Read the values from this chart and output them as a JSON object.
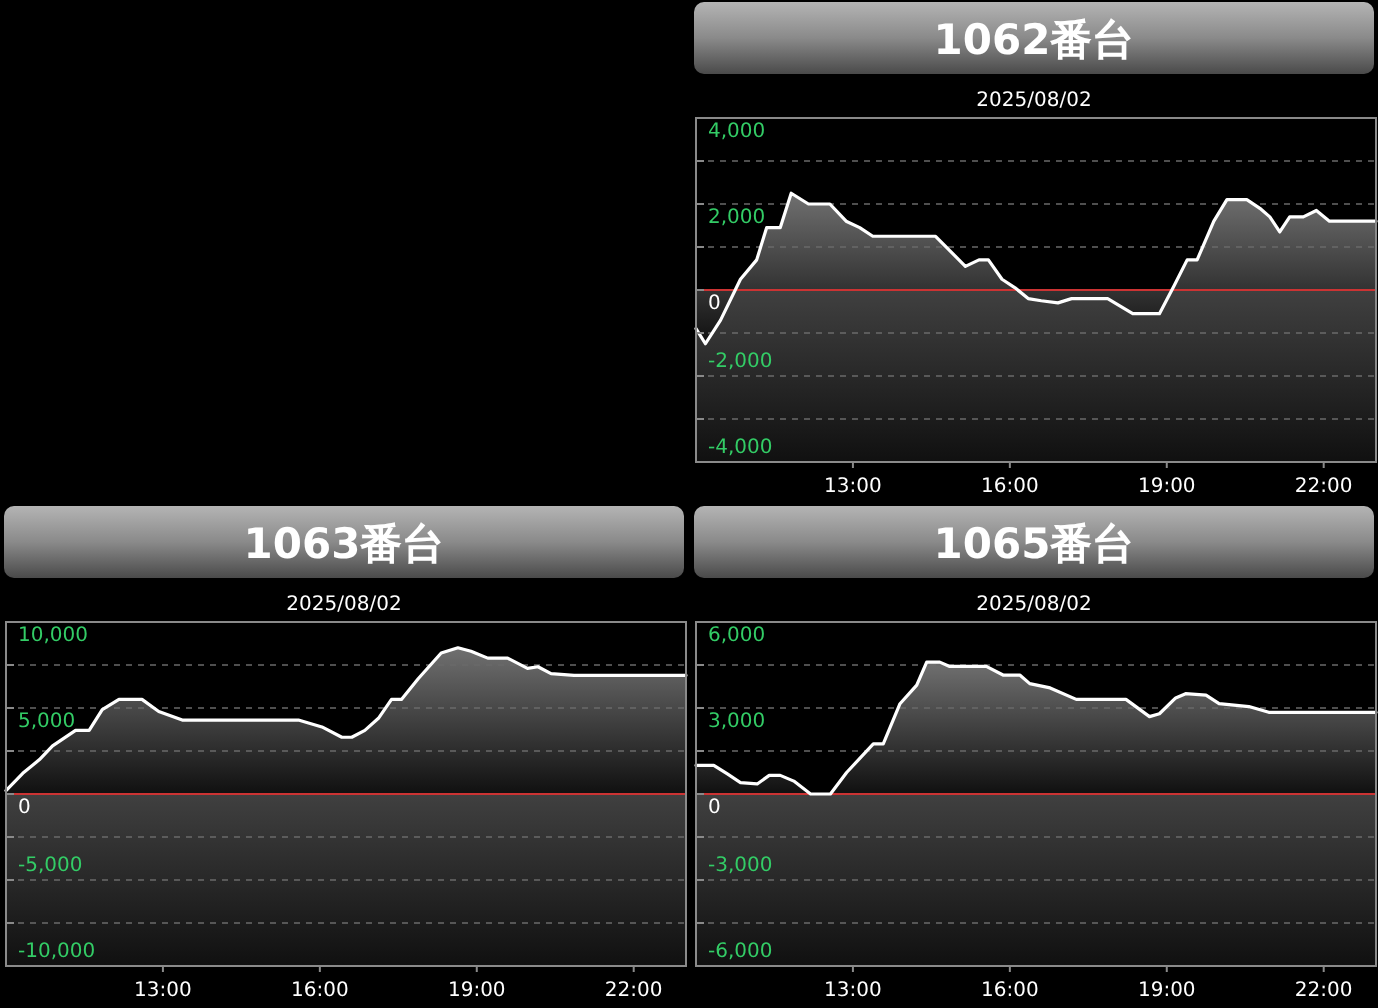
{
  "chart_data": [
    {
      "type": "area",
      "title": "1062番台",
      "subtitle": "2025/08/02",
      "xlim": [
        10,
        23
      ],
      "xticks": [
        {
          "value": 13,
          "label": "13:00"
        },
        {
          "value": 16,
          "label": "16:00"
        },
        {
          "value": 19,
          "label": "19:00"
        },
        {
          "value": 22,
          "label": "22:00"
        }
      ],
      "ylim": [
        -4000,
        4000
      ],
      "yticks": [
        {
          "value": 4000,
          "label": "4,000"
        },
        {
          "value": 3000,
          "label": null
        },
        {
          "value": 2000,
          "label": "2,000"
        },
        {
          "value": 1000,
          "label": null
        },
        {
          "value": 0,
          "label": "0"
        },
        {
          "value": -1000,
          "label": null
        },
        {
          "value": -2000,
          "label": "-2,000"
        },
        {
          "value": -3000,
          "label": null
        },
        {
          "value": -4000,
          "label": "-4,000"
        }
      ],
      "grid": "y",
      "ref_lines": [
        {
          "axis": "y",
          "value": 0,
          "color": "#cc3333"
        }
      ],
      "bands": [
        {
          "axis": "y",
          "from": -4000,
          "to": 0
        }
      ],
      "series": [
        {
          "color": "#ffffff",
          "x": [
            10.0,
            10.18,
            10.47,
            10.85,
            11.16,
            11.35,
            11.61,
            11.82,
            12.15,
            12.56,
            12.87,
            13.13,
            13.38,
            14.58,
            15.15,
            15.41,
            15.59,
            15.85,
            16.1,
            16.35,
            16.6,
            16.92,
            17.18,
            17.87,
            18.35,
            18.86,
            19.14,
            19.39,
            19.58,
            19.9,
            20.15,
            20.53,
            20.78,
            20.97,
            21.16,
            21.35,
            21.61,
            21.86,
            22.11,
            23.0
          ],
          "values": [
            -900,
            -1250,
            -700,
            250,
            700,
            1450,
            1450,
            2250,
            2000,
            2000,
            1600,
            1450,
            1250,
            1250,
            550,
            700,
            700,
            250,
            50,
            -200,
            -250,
            -300,
            -200,
            -200,
            -550,
            -550,
            100,
            700,
            700,
            1600,
            2100,
            2100,
            1900,
            1700,
            1350,
            1700,
            1700,
            1850,
            1600,
            1600
          ]
        }
      ]
    },
    {
      "type": "area",
      "title": "1063番台",
      "subtitle": "2025/08/02",
      "xlim": [
        10,
        23
      ],
      "xticks": [
        {
          "value": 13,
          "label": "13:00"
        },
        {
          "value": 16,
          "label": "16:00"
        },
        {
          "value": 19,
          "label": "19:00"
        },
        {
          "value": 22,
          "label": "22:00"
        }
      ],
      "ylim": [
        -10000,
        10000
      ],
      "yticks": [
        {
          "value": 10000,
          "label": "10,000"
        },
        {
          "value": 7500,
          "label": null
        },
        {
          "value": 5000,
          "label": "5,000"
        },
        {
          "value": 2500,
          "label": null
        },
        {
          "value": 0,
          "label": "0"
        },
        {
          "value": -2500,
          "label": null
        },
        {
          "value": -5000,
          "label": "-5,000"
        },
        {
          "value": -7500,
          "label": null
        },
        {
          "value": -10000,
          "label": "-10,000"
        }
      ],
      "grid": "y",
      "ref_lines": [
        {
          "axis": "y",
          "value": 0,
          "color": "#cc3333"
        }
      ],
      "bands": [
        {
          "axis": "y",
          "from": -10000,
          "to": 0
        }
      ],
      "series": [
        {
          "color": "#ffffff",
          "x": [
            10.0,
            10.32,
            10.64,
            10.89,
            11.33,
            11.59,
            11.84,
            12.16,
            12.6,
            12.92,
            13.37,
            15.59,
            16.04,
            16.42,
            16.61,
            16.86,
            17.12,
            17.37,
            17.56,
            17.88,
            18.32,
            18.64,
            18.89,
            19.21,
            19.59,
            19.97,
            20.17,
            20.42,
            20.86,
            23.0
          ],
          "values": [
            200,
            1200,
            2000,
            2800,
            3700,
            3700,
            4900,
            5500,
            5500,
            4800,
            4300,
            4300,
            3900,
            3300,
            3300,
            3700,
            4400,
            5500,
            5500,
            6700,
            8200,
            8500,
            8300,
            7900,
            7900,
            7300,
            7400,
            7000,
            6900,
            6900
          ]
        }
      ]
    },
    {
      "type": "area",
      "title": "1065番台",
      "subtitle": "2025/08/02",
      "xlim": [
        10,
        23
      ],
      "xticks": [
        {
          "value": 13,
          "label": "13:00"
        },
        {
          "value": 16,
          "label": "16:00"
        },
        {
          "value": 19,
          "label": "19:00"
        },
        {
          "value": 22,
          "label": "22:00"
        }
      ],
      "ylim": [
        -6000,
        6000
      ],
      "yticks": [
        {
          "value": 6000,
          "label": "6,000"
        },
        {
          "value": 4500,
          "label": null
        },
        {
          "value": 3000,
          "label": "3,000"
        },
        {
          "value": 1500,
          "label": null
        },
        {
          "value": 0,
          "label": "0"
        },
        {
          "value": -1500,
          "label": null
        },
        {
          "value": -3000,
          "label": "-3,000"
        },
        {
          "value": -4500,
          "label": null
        },
        {
          "value": -6000,
          "label": "-6,000"
        }
      ],
      "grid": "y",
      "ref_lines": [
        {
          "axis": "y",
          "value": 0,
          "color": "#cc3333"
        }
      ],
      "bands": [
        {
          "axis": "y",
          "from": -6000,
          "to": 0
        }
      ],
      "series": [
        {
          "color": "#ffffff",
          "x": [
            10.0,
            10.34,
            10.6,
            10.85,
            11.17,
            11.4,
            11.61,
            11.87,
            12.19,
            12.57,
            12.88,
            13.39,
            13.58,
            13.9,
            14.22,
            14.41,
            14.66,
            14.85,
            15.55,
            15.87,
            16.19,
            16.38,
            16.77,
            17.27,
            18.22,
            18.67,
            18.86,
            19.17,
            19.36,
            19.75,
            20.0,
            20.57,
            20.95,
            23.0
          ],
          "values": [
            1000,
            1000,
            700,
            400,
            350,
            650,
            650,
            450,
            0,
            0,
            750,
            1750,
            1750,
            3150,
            3800,
            4600,
            4600,
            4450,
            4450,
            4150,
            4150,
            3850,
            3700,
            3300,
            3300,
            2700,
            2800,
            3350,
            3500,
            3450,
            3150,
            3050,
            2850,
            2850
          ]
        }
      ]
    }
  ]
}
